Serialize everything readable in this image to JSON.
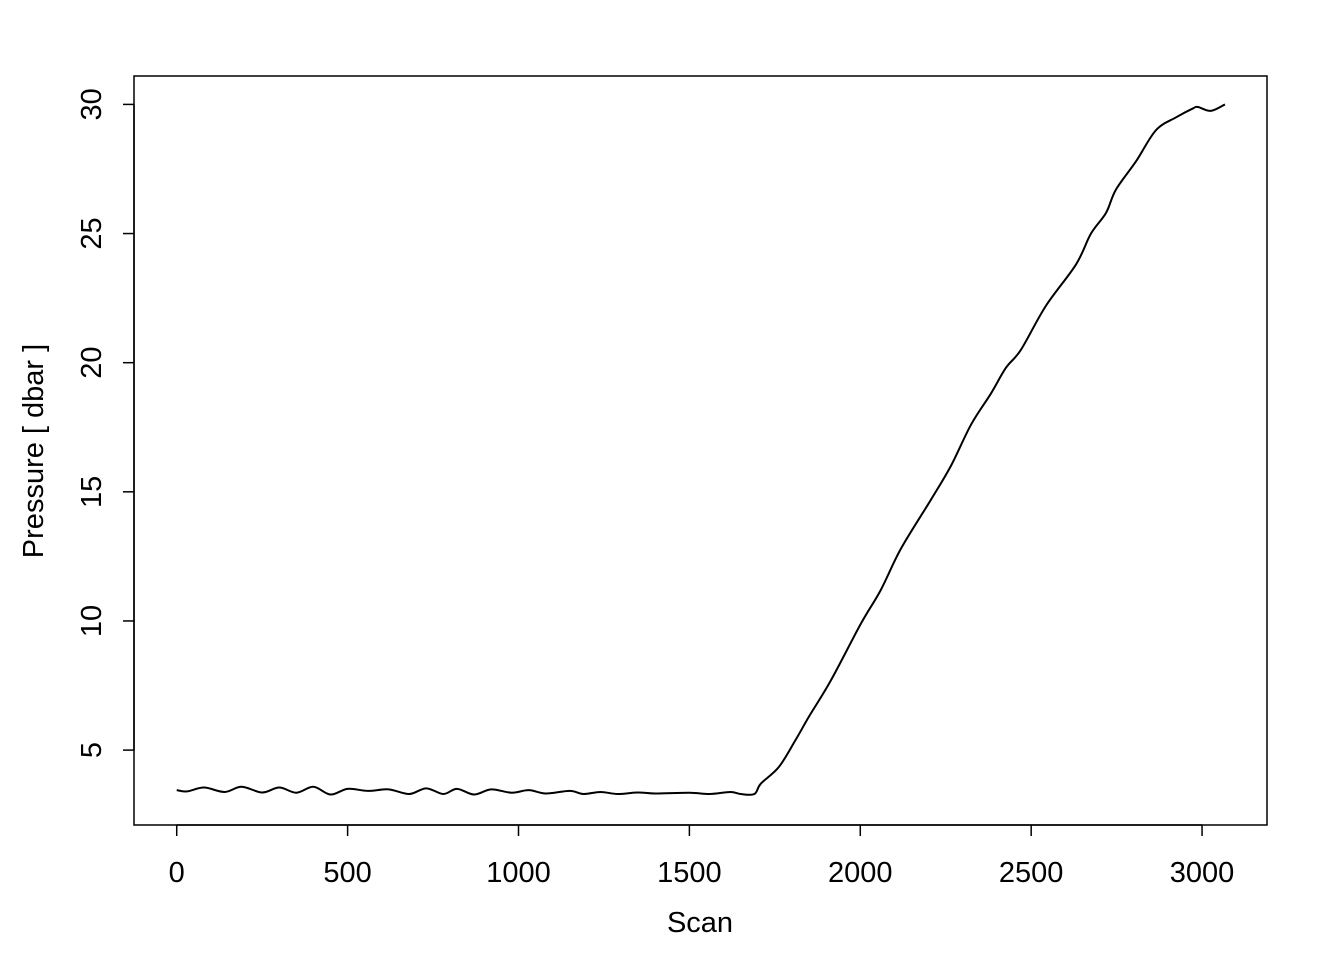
{
  "chart_data": {
    "type": "line",
    "title": "",
    "xlabel": "Scan",
    "ylabel": "Pressure [ dbar ]",
    "xlim": [
      -125,
      3190
    ],
    "ylim": [
      2.1,
      31.1
    ],
    "xticks": [
      0,
      500,
      1000,
      1500,
      2000,
      2500,
      3000
    ],
    "yticks": [
      5,
      10,
      15,
      20,
      25,
      30
    ],
    "grid": false,
    "line_color": "#000000",
    "series": [
      {
        "x": [
          0,
          30,
          80,
          140,
          190,
          250,
          300,
          350,
          400,
          450,
          500,
          560,
          620,
          680,
          730,
          780,
          820,
          870,
          920,
          980,
          1030,
          1080,
          1150,
          1190,
          1240,
          1290,
          1350,
          1400,
          1500,
          1560,
          1620,
          1650,
          1690,
          1709,
          1762,
          1811,
          1850,
          1914,
          2002,
          2060,
          2119,
          2207,
          2265,
          2324,
          2382,
          2426,
          2470,
          2543,
          2631,
          2675,
          2719,
          2748,
          2807,
          2865,
          2924,
          2974,
          2988,
          3026,
          3067
        ],
        "y": [
          3.45,
          3.4,
          3.55,
          3.38,
          3.58,
          3.36,
          3.55,
          3.35,
          3.58,
          3.28,
          3.5,
          3.42,
          3.48,
          3.3,
          3.52,
          3.3,
          3.5,
          3.28,
          3.48,
          3.35,
          3.45,
          3.32,
          3.42,
          3.3,
          3.38,
          3.3,
          3.36,
          3.32,
          3.35,
          3.3,
          3.38,
          3.3,
          3.3,
          3.7,
          4.35,
          5.4,
          6.3,
          7.7,
          9.9,
          11.2,
          12.8,
          14.7,
          16.0,
          17.6,
          18.8,
          19.8,
          20.5,
          22.2,
          23.8,
          25.0,
          25.8,
          26.7,
          27.8,
          29.0,
          29.5,
          29.85,
          29.9,
          29.75,
          30.0
        ]
      }
    ]
  }
}
